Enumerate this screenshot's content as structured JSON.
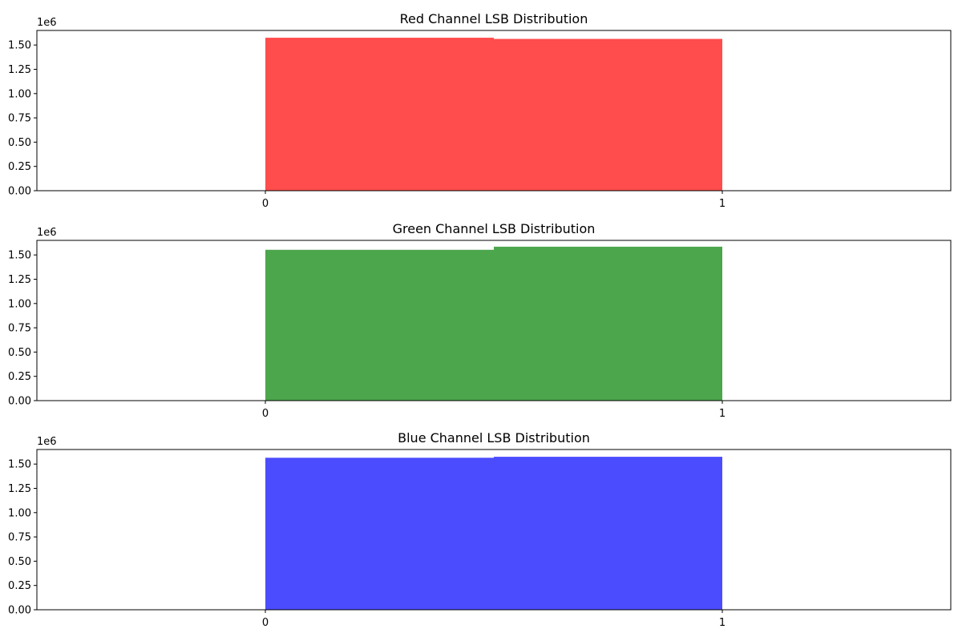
{
  "chart_data": [
    {
      "type": "bar",
      "title": "Red Channel LSB Distribution",
      "color": "#ff0000",
      "alpha": 0.7,
      "bins": [
        {
          "x0": 0.0,
          "x1": 0.5,
          "value": 1575000
        },
        {
          "x0": 0.5,
          "x1": 1.0,
          "value": 1563000
        }
      ],
      "xlim": [
        -0.5,
        1.5
      ],
      "ylim": [
        0,
        1650000
      ],
      "x_ticks": [
        0,
        1
      ],
      "x_tick_labels": [
        "0",
        "1"
      ],
      "y_ticks": [
        0,
        250000,
        500000,
        750000,
        1000000,
        1250000,
        1500000
      ],
      "y_tick_labels": [
        "0.00",
        "0.25",
        "0.50",
        "0.75",
        "1.00",
        "1.25",
        "1.50"
      ],
      "y_offset_label": "1e6",
      "xlabel": "",
      "ylabel": "",
      "grid": false
    },
    {
      "type": "bar",
      "title": "Green Channel LSB Distribution",
      "color": "#008000",
      "alpha": 0.7,
      "bins": [
        {
          "x0": 0.0,
          "x1": 0.5,
          "value": 1553000
        },
        {
          "x0": 0.5,
          "x1": 1.0,
          "value": 1585000
        }
      ],
      "xlim": [
        -0.5,
        1.5
      ],
      "ylim": [
        0,
        1650000
      ],
      "x_ticks": [
        0,
        1
      ],
      "x_tick_labels": [
        "0",
        "1"
      ],
      "y_ticks": [
        0,
        250000,
        500000,
        750000,
        1000000,
        1250000,
        1500000
      ],
      "y_tick_labels": [
        "0.00",
        "0.25",
        "0.50",
        "0.75",
        "1.00",
        "1.25",
        "1.50"
      ],
      "y_offset_label": "1e6",
      "xlabel": "",
      "ylabel": "",
      "grid": false
    },
    {
      "type": "bar",
      "title": "Blue Channel LSB Distribution",
      "color": "#0000ff",
      "alpha": 0.7,
      "bins": [
        {
          "x0": 0.0,
          "x1": 0.5,
          "value": 1565000
        },
        {
          "x0": 0.5,
          "x1": 1.0,
          "value": 1575000
        }
      ],
      "xlim": [
        -0.5,
        1.5
      ],
      "ylim": [
        0,
        1650000
      ],
      "x_ticks": [
        0,
        1
      ],
      "x_tick_labels": [
        "0",
        "1"
      ],
      "y_ticks": [
        0,
        250000,
        500000,
        750000,
        1000000,
        1250000,
        1500000
      ],
      "y_tick_labels": [
        "0.00",
        "0.25",
        "0.50",
        "0.75",
        "1.00",
        "1.25",
        "1.50"
      ],
      "y_offset_label": "1e6",
      "xlabel": "",
      "ylabel": "",
      "grid": false
    }
  ]
}
